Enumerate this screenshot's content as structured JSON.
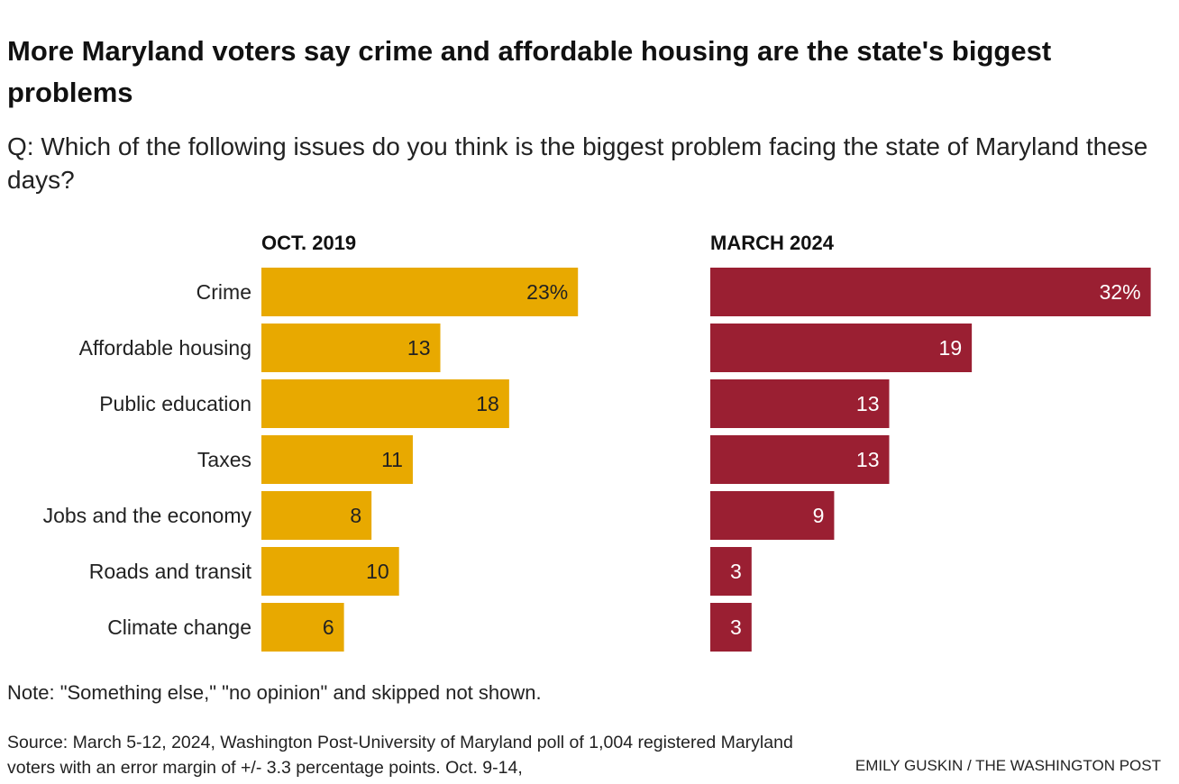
{
  "chart_data": {
    "type": "bar",
    "orientation": "horizontal",
    "title": "More Maryland voters say crime and affordable housing are the state's biggest problems",
    "subtitle": "Q: Which of the following issues do you think is the biggest problem facing the state of Maryland these days?",
    "categories": [
      "Crime",
      "Affordable housing",
      "Public education",
      "Taxes",
      "Jobs and the economy",
      "Roads and transit",
      "Climate change"
    ],
    "series": [
      {
        "name": "OCT. 2019",
        "color": "#e8a900",
        "label_color": "#222222",
        "values": [
          23,
          13,
          18,
          11,
          8,
          10,
          6
        ],
        "labels": [
          "23%",
          "13",
          "18",
          "11",
          "8",
          "10",
          "6"
        ]
      },
      {
        "name": "MARCH 2024",
        "color": "#9a1f32",
        "label_color": "#ffffff",
        "values": [
          32,
          19,
          13,
          13,
          9,
          3,
          3
        ],
        "labels": [
          "32%",
          "19",
          "13",
          "13",
          "9",
          "3",
          "3"
        ]
      }
    ],
    "unit": "%",
    "grid": false
  },
  "note": "Note: \"Something else,\" \"no opinion\" and skipped not shown.",
  "source": "Source: March 5-12, 2024, Washington Post-University of Maryland poll of 1,004 registered Maryland voters with an error margin of +/- 3.3 percentage points. Oct. 9-14,",
  "credit": "EMILY GUSKIN / THE WASHINGTON POST"
}
